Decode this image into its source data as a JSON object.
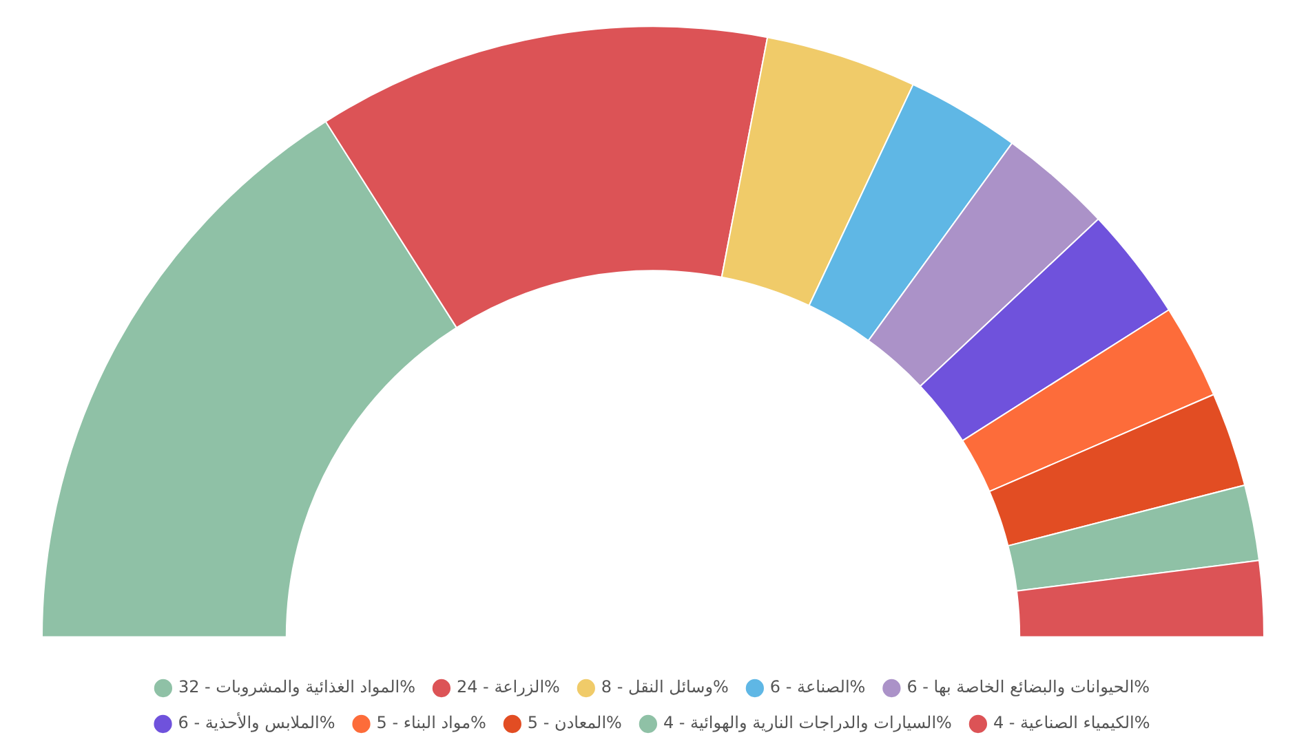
{
  "chart_data": {
    "type": "donut",
    "categories": [
      "المواد الغذائية والمشروبات - 32%",
      "الزراعة - 24%",
      "وسائل النقل - 8%",
      "الصناعة - 6%",
      "الحيوانات والبضائع الخاصة بها - 6%",
      "الملابس والأحذية - 6%",
      "مواد البناء - 5%",
      "المعادن - 5%",
      "السيارات والدراجات النارية والهوائية - 4%",
      "الكيمياء الصناعية - 4%"
    ],
    "values": [
      32,
      24,
      8,
      6,
      6,
      6,
      5,
      5,
      4,
      4
    ],
    "colors": [
      "#8fc1a6",
      "#dc5356",
      "#f0cb69",
      "#5fb7e5",
      "#ab92c8",
      "#6f52dc",
      "#fd6c3a",
      "#e24d23",
      "#8fc1a6",
      "#dc5356"
    ],
    "legend": "bottom"
  }
}
